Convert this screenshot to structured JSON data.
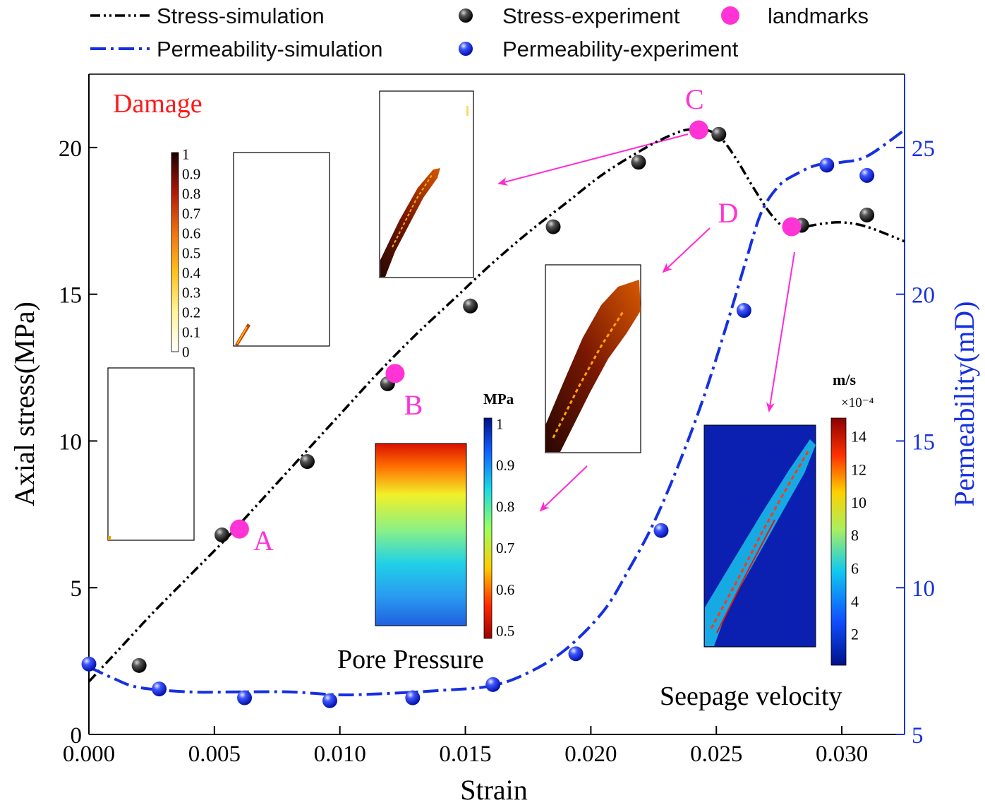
{
  "chart_data": {
    "type": "line",
    "xlabel": "Strain",
    "ylabel": "Axial stress(MPa)",
    "y2label": "Permeability(mD)",
    "xlim": [
      0,
      0.0325
    ],
    "ylim": [
      0,
      22.5
    ],
    "y2lim": [
      5,
      27.5
    ],
    "x_ticks": [
      0,
      0.005,
      0.01,
      0.015,
      0.02,
      0.025,
      0.03
    ],
    "x_tick_labels": [
      "0.000",
      "0.005",
      "0.010",
      "0.015",
      "0.020",
      "0.025",
      "0.030"
    ],
    "y_ticks": [
      0,
      5,
      10,
      15,
      20
    ],
    "y_tick_labels": [
      "0",
      "5",
      "10",
      "15",
      "20"
    ],
    "y2_ticks": [
      5,
      10,
      15,
      20,
      25
    ],
    "y2_tick_labels": [
      "5",
      "10",
      "15",
      "20",
      "25"
    ],
    "legend": {
      "stress_sim": "Stress-simulation",
      "perm_sim": "Permeability-simulation",
      "stress_exp": "Stress-experiment",
      "perm_exp": "Permeability-experiment",
      "landmarks": "landmarks"
    },
    "series": [
      {
        "name": "Stress-simulation",
        "axis": "left",
        "style": "dash-dot-dot",
        "color": "#000000",
        "x": [
          0,
          0.0012,
          0.0025,
          0.004,
          0.0055,
          0.007,
          0.0085,
          0.01,
          0.0115,
          0.013,
          0.0145,
          0.016,
          0.0175,
          0.019,
          0.0205,
          0.022,
          0.023,
          0.0238,
          0.0246,
          0.0252,
          0.0258,
          0.0265,
          0.0272,
          0.0278,
          0.0285,
          0.0292,
          0.03,
          0.031,
          0.0325
        ],
        "values": [
          1.8,
          2.9,
          4.1,
          5.4,
          6.7,
          8.1,
          9.5,
          10.9,
          12.3,
          13.6,
          14.8,
          16.0,
          17.1,
          18.1,
          19.1,
          19.9,
          20.35,
          20.6,
          20.6,
          20.3,
          19.6,
          18.6,
          17.7,
          17.25,
          17.3,
          17.4,
          17.45,
          17.3,
          16.8
        ]
      },
      {
        "name": "Permeability-simulation",
        "axis": "right",
        "style": "dash-dot",
        "color": "#1530e0",
        "x": [
          0,
          0.001,
          0.002,
          0.004,
          0.006,
          0.008,
          0.01,
          0.012,
          0.014,
          0.016,
          0.0175,
          0.019,
          0.0205,
          0.0215,
          0.0225,
          0.0235,
          0.0245,
          0.0255,
          0.0262,
          0.0268,
          0.0275,
          0.0282,
          0.029,
          0.03,
          0.031,
          0.0325
        ],
        "values": [
          7.3,
          6.9,
          6.6,
          6.45,
          6.45,
          6.45,
          6.35,
          6.4,
          6.5,
          6.65,
          7.1,
          7.9,
          9.2,
          10.6,
          12.2,
          14.2,
          16.5,
          19.2,
          21.2,
          22.8,
          23.7,
          24.1,
          24.4,
          24.5,
          24.7,
          25.6
        ]
      },
      {
        "name": "Stress-experiment",
        "axis": "left",
        "marker": "black-sphere",
        "x": [
          0.002,
          0.0053,
          0.0087,
          0.0119,
          0.0152,
          0.0185,
          0.0219,
          0.0251,
          0.0284,
          0.031
        ],
        "values": [
          2.35,
          6.8,
          9.3,
          11.95,
          14.6,
          17.3,
          19.5,
          20.45,
          17.35,
          17.7
        ]
      },
      {
        "name": "Permeability-experiment",
        "axis": "right",
        "marker": "blue-sphere",
        "x": [
          0,
          0.0028,
          0.0062,
          0.0096,
          0.0129,
          0.0161,
          0.0194,
          0.0228,
          0.0261,
          0.0294,
          0.031
        ],
        "values": [
          7.4,
          6.55,
          6.25,
          6.15,
          6.25,
          6.7,
          7.75,
          11.95,
          19.45,
          24.4,
          24.05
        ]
      },
      {
        "name": "landmarks",
        "axis": "left",
        "marker": "magenta-circle",
        "labels": [
          "A",
          "B",
          "C",
          "D"
        ],
        "x": [
          0.006,
          0.0122,
          0.0243,
          0.028
        ],
        "values": [
          7.0,
          12.3,
          20.6,
          17.3
        ]
      }
    ],
    "annotations": {
      "damage": "Damage",
      "pore_pressure": "Pore Pressure",
      "seepage_velocity": "Seepage velocity",
      "damage_scale": [
        "1",
        "0.9",
        "0.8",
        "0.7",
        "0.6",
        "0.5",
        "0.4",
        "0.3",
        "0.2",
        "0.1",
        "0"
      ],
      "pressure_unit": "MPa",
      "pressure_scale": [
        "1",
        "0.9",
        "0.8",
        "0.7",
        "0.6",
        "0.5"
      ],
      "velocity_unit": "m/s",
      "velocity_exponent": "×10⁻⁴",
      "velocity_scale": [
        "14",
        "12",
        "10",
        "8",
        "6",
        "4",
        "2"
      ]
    }
  }
}
